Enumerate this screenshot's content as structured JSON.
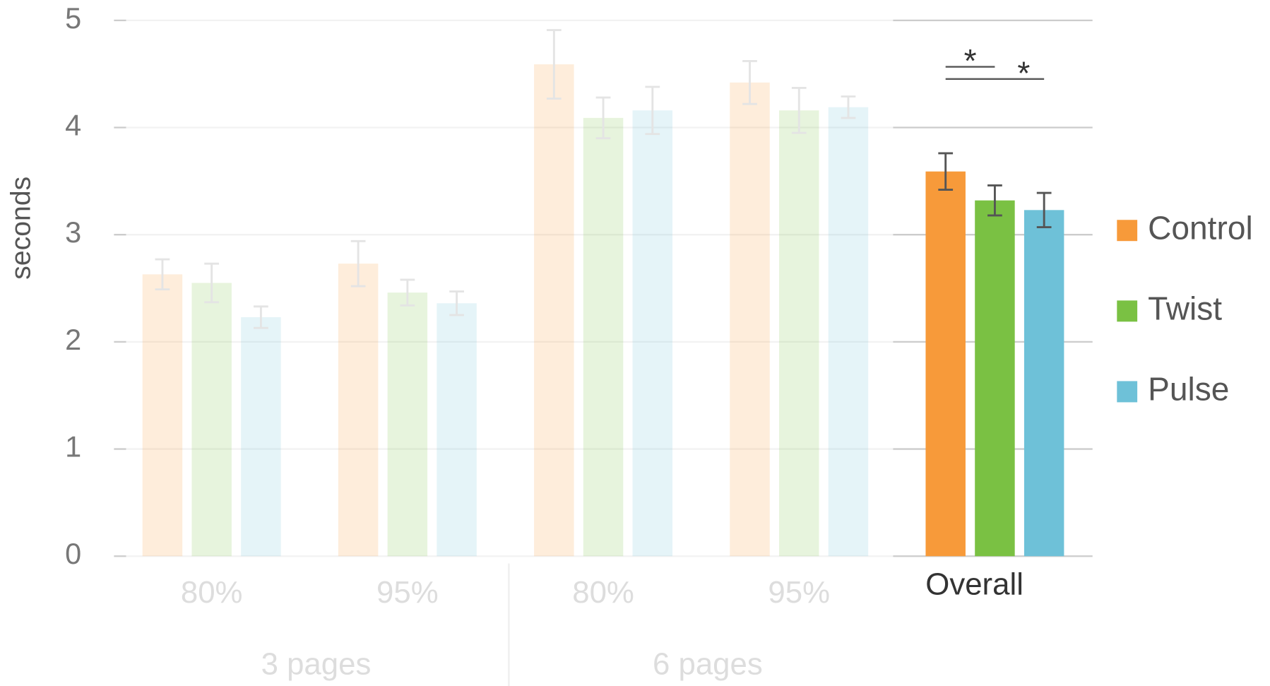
{
  "chart_data": {
    "type": "bar",
    "y_label": "seconds",
    "categories": [
      "80%",
      "95%",
      "80%",
      "95%",
      "Overall"
    ],
    "groups": [
      {
        "label": "3 pages",
        "span": [
          0,
          1
        ]
      },
      {
        "label": "6 pages",
        "span": [
          2,
          3
        ]
      }
    ],
    "highlight_index": 4,
    "series": [
      {
        "name": "Control",
        "color": "#f79a3a",
        "values": [
          2.63,
          2.73,
          4.59,
          4.42,
          3.59
        ],
        "errors": [
          0.14,
          0.21,
          0.32,
          0.2,
          0.17
        ]
      },
      {
        "name": "Twist",
        "color": "#7ac143",
        "values": [
          2.55,
          2.46,
          4.09,
          4.16,
          3.32
        ],
        "errors": [
          0.18,
          0.12,
          0.19,
          0.21,
          0.14
        ]
      },
      {
        "name": "Pulse",
        "color": "#6ec1d8",
        "values": [
          2.23,
          2.36,
          4.16,
          4.19,
          3.23
        ],
        "errors": [
          0.1,
          0.11,
          0.22,
          0.1,
          0.16
        ]
      }
    ],
    "annotations": [
      "*",
      "*"
    ],
    "ylim": [
      0,
      5
    ],
    "yticks": [
      0,
      1,
      2,
      3,
      4,
      5
    ],
    "grid": true,
    "legend": "right"
  }
}
